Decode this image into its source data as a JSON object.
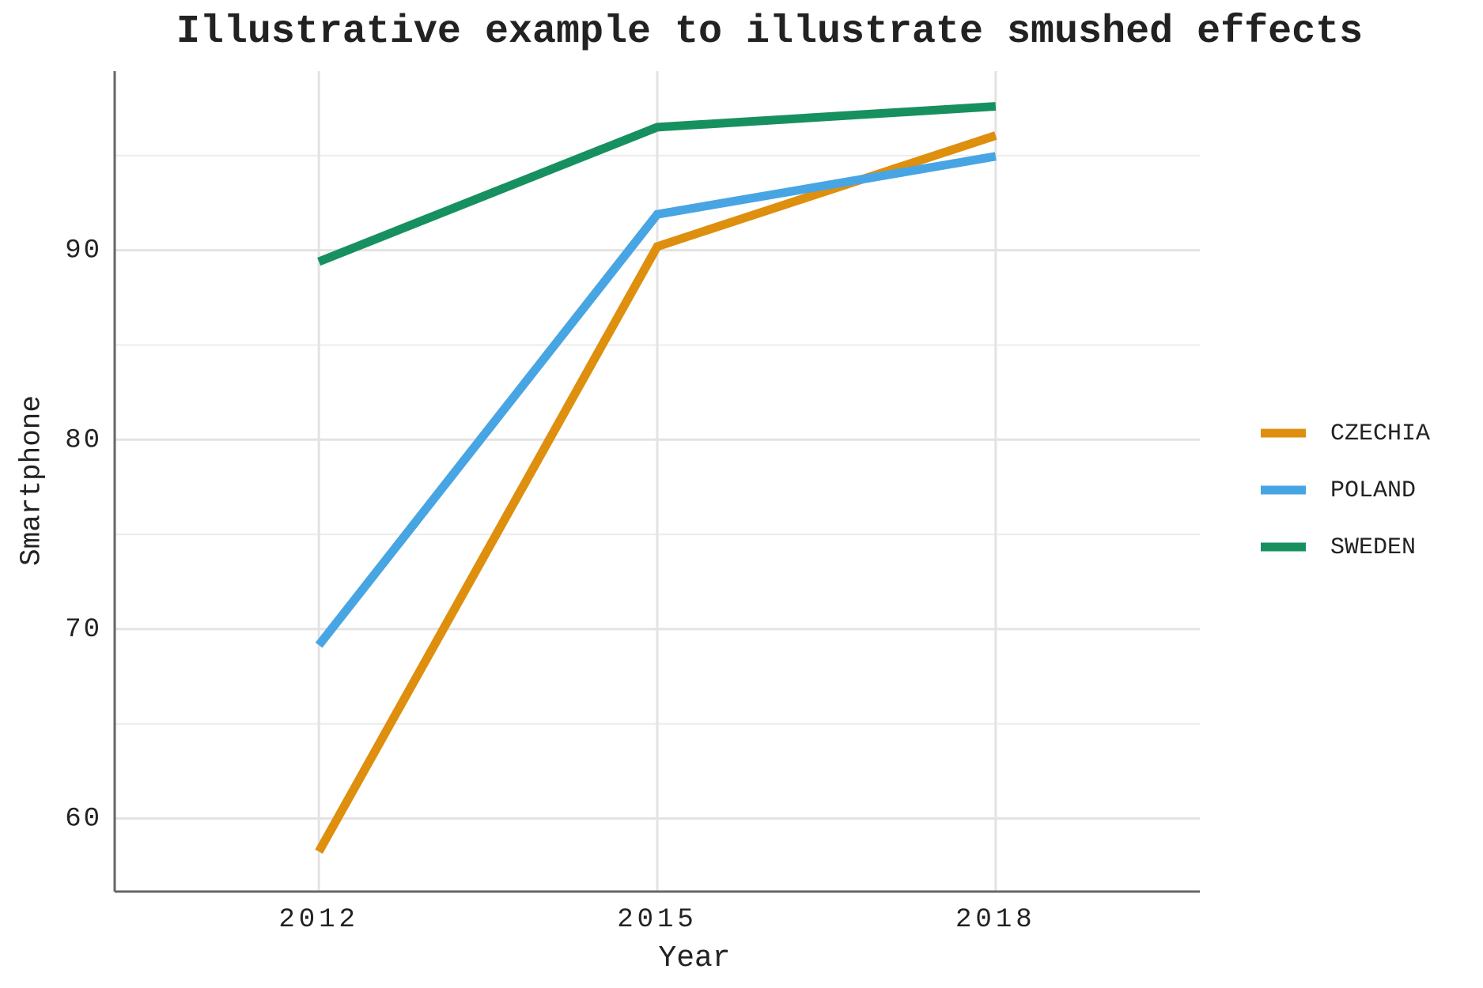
{
  "chart_data": {
    "type": "line",
    "title": "Illustrative example to illustrate smushed effects",
    "x_label": "Year",
    "y_label": "Smartphone",
    "x": [
      2012,
      2015,
      2018
    ],
    "series": [
      {
        "name": "CZECHIA",
        "color": "#de8f0e",
        "values": [
          58.25,
          90.2,
          96.06
        ]
      },
      {
        "name": "POLAND",
        "color": "#48a5e3",
        "values": [
          69.15,
          91.9,
          94.96
        ]
      },
      {
        "name": "SWEDEN",
        "color": "#17905f",
        "values": [
          89.4,
          96.5,
          97.6
        ]
      }
    ],
    "xlim": [
      2010.19,
      2019.81
    ],
    "xticks": [
      2012,
      2015,
      2018
    ],
    "ylim": [
      56.14,
      99.46
    ],
    "yticks": [
      60,
      70,
      80,
      90
    ],
    "minor_yticks": [
      65,
      75,
      85,
      95
    ],
    "grid": true,
    "legend": "right"
  }
}
